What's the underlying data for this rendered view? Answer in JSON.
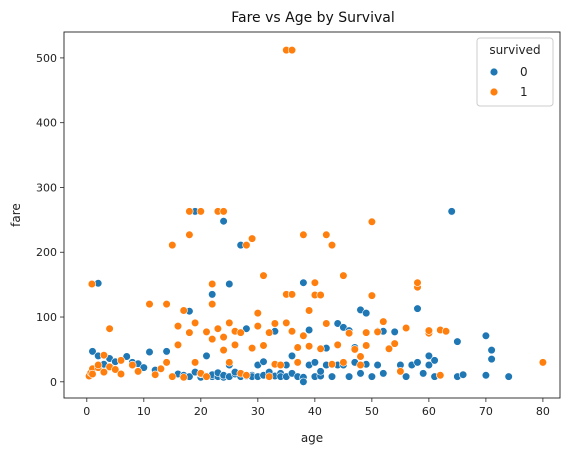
{
  "chart_data": {
    "type": "scatter",
    "title": "Fare vs Age by Survival",
    "xlabel": "age",
    "ylabel": "fare",
    "xlim": [
      -4,
      83
    ],
    "ylim": [
      -25,
      540
    ],
    "xticks": [
      0,
      10,
      20,
      30,
      40,
      50,
      60,
      70,
      80
    ],
    "yticks": [
      0,
      100,
      200,
      300,
      400,
      500
    ],
    "grid": false,
    "legend": {
      "title": "survived",
      "placement": "top-right"
    },
    "series": [
      {
        "name": "0",
        "color": "#1f77b4",
        "points": [
          [
            2,
            152
          ],
          [
            1,
            47
          ],
          [
            2,
            40
          ],
          [
            4,
            36
          ],
          [
            3,
            27
          ],
          [
            5,
            31
          ],
          [
            7,
            39
          ],
          [
            8,
            30
          ],
          [
            9,
            28
          ],
          [
            10,
            22
          ],
          [
            11,
            46
          ],
          [
            12,
            18
          ],
          [
            14,
            47
          ],
          [
            15,
            8
          ],
          [
            16,
            12
          ],
          [
            17,
            10
          ],
          [
            18,
            8
          ],
          [
            18,
            109
          ],
          [
            19,
            263
          ],
          [
            19,
            15
          ],
          [
            20,
            7
          ],
          [
            20,
            12
          ],
          [
            21,
            9
          ],
          [
            21,
            40
          ],
          [
            22,
            8
          ],
          [
            22,
            11
          ],
          [
            22,
            135
          ],
          [
            23,
            8
          ],
          [
            23,
            14
          ],
          [
            24,
            7
          ],
          [
            24,
            248
          ],
          [
            24,
            10
          ],
          [
            25,
            26
          ],
          [
            25,
            151
          ],
          [
            25,
            8
          ],
          [
            26,
            12
          ],
          [
            26,
            15
          ],
          [
            27,
            211
          ],
          [
            27,
            8
          ],
          [
            28,
            9
          ],
          [
            28,
            82
          ],
          [
            29,
            10
          ],
          [
            29,
            8
          ],
          [
            30,
            26
          ],
          [
            30,
            8
          ],
          [
            31,
            10
          ],
          [
            31,
            31
          ],
          [
            32,
            8
          ],
          [
            32,
            15
          ],
          [
            33,
            9
          ],
          [
            33,
            78
          ],
          [
            34,
            13
          ],
          [
            34,
            8
          ],
          [
            35,
            26
          ],
          [
            35,
            8
          ],
          [
            36,
            40
          ],
          [
            36,
            13
          ],
          [
            37,
            8
          ],
          [
            37,
            30
          ],
          [
            38,
            153
          ],
          [
            38,
            7
          ],
          [
            38,
            0
          ],
          [
            39,
            26
          ],
          [
            39,
            80
          ],
          [
            40,
            8
          ],
          [
            40,
            30
          ],
          [
            41,
            9
          ],
          [
            41,
            16
          ],
          [
            42,
            26
          ],
          [
            42,
            52
          ],
          [
            43,
            8
          ],
          [
            44,
            26
          ],
          [
            44,
            90
          ],
          [
            45,
            26
          ],
          [
            45,
            84
          ],
          [
            46,
            79
          ],
          [
            46,
            8
          ],
          [
            47,
            53
          ],
          [
            47,
            30
          ],
          [
            48,
            111
          ],
          [
            48,
            13
          ],
          [
            49,
            106
          ],
          [
            49,
            27
          ],
          [
            50,
            8
          ],
          [
            51,
            78
          ],
          [
            51,
            26
          ],
          [
            52,
            78
          ],
          [
            52,
            13
          ],
          [
            54,
            77
          ],
          [
            55,
            26
          ],
          [
            55,
            16
          ],
          [
            56,
            8
          ],
          [
            57,
            26
          ],
          [
            58,
            113
          ],
          [
            58,
            30
          ],
          [
            59,
            13
          ],
          [
            60,
            26
          ],
          [
            60,
            40
          ],
          [
            61,
            8
          ],
          [
            61,
            33
          ],
          [
            62,
            10
          ],
          [
            63,
            78
          ],
          [
            64,
            263
          ],
          [
            65,
            62
          ],
          [
            65,
            8
          ],
          [
            66,
            11
          ],
          [
            70,
            71
          ],
          [
            70,
            10
          ],
          [
            71,
            49
          ],
          [
            71,
            35
          ],
          [
            74,
            8
          ]
        ]
      },
      {
        "name": "1",
        "color": "#ff7f0e",
        "points": [
          [
            0.4,
            9
          ],
          [
            0.7,
            14
          ],
          [
            0.9,
            151
          ],
          [
            1,
            20
          ],
          [
            1,
            12
          ],
          [
            2,
            22
          ],
          [
            2,
            26
          ],
          [
            3,
            15
          ],
          [
            3,
            41
          ],
          [
            4,
            82
          ],
          [
            4,
            23
          ],
          [
            5,
            19
          ],
          [
            6,
            33
          ],
          [
            6,
            12
          ],
          [
            8,
            26
          ],
          [
            9,
            16
          ],
          [
            11,
            120
          ],
          [
            12,
            11
          ],
          [
            13,
            20
          ],
          [
            14,
            120
          ],
          [
            14,
            30
          ],
          [
            15,
            211
          ],
          [
            15,
            8
          ],
          [
            16,
            86
          ],
          [
            16,
            57
          ],
          [
            17,
            110
          ],
          [
            17,
            7
          ],
          [
            18,
            227
          ],
          [
            18,
            263
          ],
          [
            18,
            76
          ],
          [
            19,
            30
          ],
          [
            19,
            91
          ],
          [
            20,
            263
          ],
          [
            20,
            13
          ],
          [
            21,
            77
          ],
          [
            21,
            8
          ],
          [
            22,
            151
          ],
          [
            22,
            66
          ],
          [
            22,
            120
          ],
          [
            23,
            263
          ],
          [
            23,
            82
          ],
          [
            24,
            263
          ],
          [
            24,
            69
          ],
          [
            24,
            49
          ],
          [
            25,
            91
          ],
          [
            25,
            30
          ],
          [
            26,
            78
          ],
          [
            26,
            57
          ],
          [
            27,
            13
          ],
          [
            27,
            76
          ],
          [
            28,
            211
          ],
          [
            28,
            10
          ],
          [
            29,
            52
          ],
          [
            29,
            221
          ],
          [
            30,
            106
          ],
          [
            30,
            86
          ],
          [
            31,
            164
          ],
          [
            31,
            56
          ],
          [
            32,
            76
          ],
          [
            32,
            8
          ],
          [
            33,
            90
          ],
          [
            33,
            27
          ],
          [
            34,
            26
          ],
          [
            35,
            512
          ],
          [
            35,
            135
          ],
          [
            35,
            91
          ],
          [
            36,
            512
          ],
          [
            36,
            135
          ],
          [
            36,
            78
          ],
          [
            37,
            53
          ],
          [
            37,
            30
          ],
          [
            38,
            227
          ],
          [
            38,
            71
          ],
          [
            39,
            110
          ],
          [
            39,
            55
          ],
          [
            40,
            153
          ],
          [
            40,
            134
          ],
          [
            41,
            134
          ],
          [
            41,
            51
          ],
          [
            42,
            227
          ],
          [
            42,
            90
          ],
          [
            43,
            211
          ],
          [
            43,
            27
          ],
          [
            44,
            57
          ],
          [
            45,
            164
          ],
          [
            45,
            30
          ],
          [
            46,
            75
          ],
          [
            47,
            50
          ],
          [
            48,
            39
          ],
          [
            48,
            26
          ],
          [
            49,
            76
          ],
          [
            49,
            56
          ],
          [
            50,
            247
          ],
          [
            50,
            133
          ],
          [
            51,
            77
          ],
          [
            52,
            93
          ],
          [
            53,
            51
          ],
          [
            54,
            59
          ],
          [
            55,
            16
          ],
          [
            56,
            83
          ],
          [
            58,
            146
          ],
          [
            58,
            153
          ],
          [
            60,
            75
          ],
          [
            60,
            79
          ],
          [
            62,
            80
          ],
          [
            62,
            10
          ],
          [
            63,
            78
          ],
          [
            80,
            30
          ]
        ]
      }
    ]
  }
}
